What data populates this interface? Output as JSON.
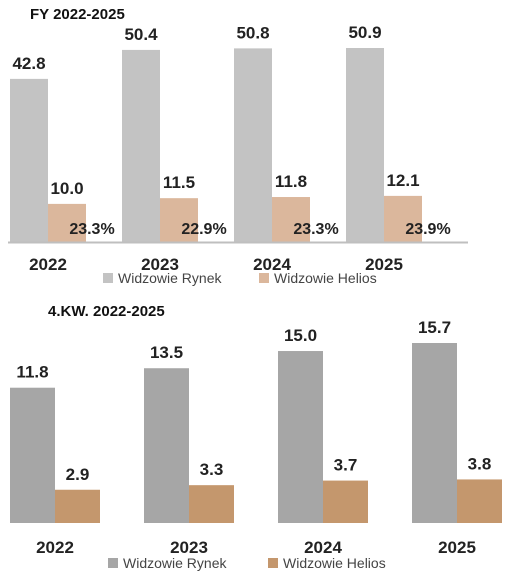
{
  "chart_data": [
    {
      "type": "bar",
      "title": "FY 2022-2025",
      "categories": [
        "2022",
        "2023",
        "2024",
        "2025"
      ],
      "series": [
        {
          "name": "Widzowie Rynek",
          "values": [
            42.8,
            50.4,
            50.8,
            50.9
          ],
          "color": "#c3c3c3"
        },
        {
          "name": "Widzowie Helios",
          "values": [
            10.0,
            11.5,
            11.8,
            12.1
          ],
          "color": "#dbb79c"
        }
      ],
      "value_labels": [
        [
          "42.8",
          "50.4",
          "50.8",
          "50.9"
        ],
        [
          "10.0",
          "11.5",
          "11.8",
          "12.1"
        ]
      ],
      "share_labels": [
        "23.3%",
        "22.9%",
        "23.3%",
        "23.9%"
      ],
      "share_values": [
        23.3,
        22.9,
        23.3,
        23.9
      ],
      "axis_color": "#bfbfbf",
      "legend": "bottom",
      "grid": false
    },
    {
      "type": "bar",
      "title": "4.KW. 2022-2025",
      "categories": [
        "2022",
        "2023",
        "2024",
        "2025"
      ],
      "series": [
        {
          "name": "Widzowie Rynek",
          "values": [
            11.8,
            13.5,
            15.0,
            15.7
          ],
          "color": "#a6a6a6"
        },
        {
          "name": "Widzowie Helios",
          "values": [
            2.9,
            3.3,
            3.7,
            3.8
          ],
          "color": "#c4976d"
        }
      ],
      "value_labels": [
        [
          "11.8",
          "13.5",
          "15.0",
          "15.7"
        ],
        [
          "2.9",
          "3.3",
          "3.7",
          "3.8"
        ]
      ],
      "legend": "bottom",
      "grid": false
    }
  ]
}
